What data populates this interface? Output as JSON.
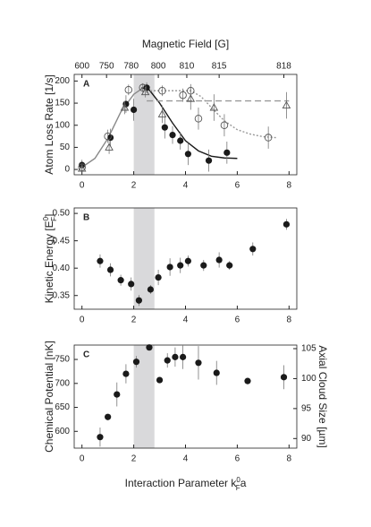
{
  "chart_data": [
    {
      "type": "scatter",
      "panel": "A",
      "top_axis": {
        "label": "Magnetic Field [G]",
        "ticks": [
          600,
          750,
          780,
          800,
          810,
          815,
          818
        ],
        "positions": [
          0,
          0.95,
          1.9,
          2.95,
          4.05,
          5.3,
          7.8
        ]
      },
      "ylabel": "Atom Loss Rate [1/s]",
      "xlim": [
        -0.3,
        8.3
      ],
      "xticks": [
        0,
        2,
        4,
        6,
        8
      ],
      "ylim": [
        -12,
        215
      ],
      "yticks": [
        0,
        50,
        100,
        150,
        200
      ],
      "shade": [
        2,
        2.8
      ],
      "series": [
        {
          "marker": "filled-circle",
          "color": "#1a1a1a",
          "x": [
            0,
            1.1,
            1.7,
            2.0,
            2.5,
            3.2,
            3.5,
            3.8,
            4.1,
            4.9,
            5.6
          ],
          "values": [
            10,
            72,
            148,
            135,
            185,
            95,
            78,
            65,
            35,
            20,
            38
          ],
          "errors": [
            12,
            20,
            20,
            25,
            12,
            25,
            20,
            20,
            25,
            25,
            25
          ]
        },
        {
          "marker": "open-circle",
          "color": "#555555",
          "x": [
            0,
            1.0,
            1.8,
            2.35,
            3.1,
            3.9,
            4.2,
            4.5,
            5.5,
            7.2
          ],
          "values": [
            5,
            75,
            180,
            185,
            178,
            168,
            178,
            115,
            100,
            72
          ],
          "errors": [
            8,
            15,
            12,
            10,
            12,
            15,
            15,
            25,
            25,
            25
          ]
        },
        {
          "marker": "open-triangle",
          "color": "#555555",
          "x": [
            0,
            1.05,
            1.65,
            2.45,
            3.1,
            4.2,
            5.1,
            7.9
          ],
          "values": [
            2,
            50,
            140,
            175,
            125,
            160,
            140,
            145
          ],
          "errors": [
            6,
            15,
            15,
            12,
            20,
            25,
            30,
            30
          ]
        }
      ],
      "curves": [
        {
          "style": "solid",
          "color": "#888888",
          "x": [
            0,
            0.5,
            1,
            1.5,
            2,
            2.3,
            2.5
          ],
          "values": [
            5,
            25,
            70,
            130,
            170,
            182,
            185
          ]
        },
        {
          "style": "solid",
          "color": "#1a1a1a",
          "x": [
            2.3,
            2.6,
            3,
            3.5,
            4,
            4.5,
            5,
            5.5,
            6
          ],
          "values": [
            185,
            180,
            150,
            105,
            65,
            42,
            30,
            26,
            25
          ]
        },
        {
          "style": "dashed",
          "color": "#999999",
          "x": [
            2.5,
            8
          ],
          "values": [
            155,
            155
          ]
        },
        {
          "style": "dotted",
          "color": "#999999",
          "x": [
            2.5,
            4.2,
            4.6,
            5,
            5.5,
            6,
            6.5,
            7,
            7.5
          ],
          "values": [
            178,
            178,
            165,
            140,
            110,
            90,
            80,
            74,
            72
          ]
        }
      ]
    },
    {
      "type": "scatter",
      "panel": "B",
      "ylabel": {
        "text": "Kinetic Energy [E",
        "sup": "0",
        "sub": "F",
        "after": "]"
      },
      "xlim": [
        -0.3,
        8.3
      ],
      "xticks": [
        0,
        2,
        4,
        6,
        8
      ],
      "ylim": [
        0.325,
        0.51
      ],
      "yticks": [
        {
          "value": 0.35,
          "label": "0.35"
        },
        {
          "value": 0.4,
          "label": "0.40"
        },
        0.45,
        {
          "value": 0.5,
          "label": "0.50"
        }
      ],
      "shade": [
        2,
        2.8
      ],
      "series": [
        {
          "marker": "filled-circle",
          "color": "#1a1a1a",
          "x": [
            0.7,
            1.1,
            1.5,
            1.9,
            2.2,
            2.65,
            2.95,
            3.4,
            3.8,
            4.1,
            4.7,
            5.3,
            5.7,
            6.6,
            7.9
          ],
          "values": [
            0.413,
            0.397,
            0.378,
            0.371,
            0.341,
            0.361,
            0.383,
            0.402,
            0.405,
            0.413,
            0.405,
            0.415,
            0.405,
            0.435,
            0.48
          ],
          "errors": [
            0.012,
            0.012,
            0.01,
            0.012,
            0.01,
            0.008,
            0.014,
            0.016,
            0.014,
            0.01,
            0.01,
            0.014,
            0.008,
            0.012,
            0.01
          ]
        }
      ]
    },
    {
      "type": "scatter",
      "panel": "C",
      "ylabel": "Chemical Potential [nK]",
      "y2label": "Axial Cloud Size [µm]",
      "xlabel": {
        "text": "Interaction Parameter k",
        "sup": "0",
        "sub": "F",
        "after": "a"
      },
      "xlim": [
        -0.3,
        8.3
      ],
      "xticks": [
        0,
        2,
        4,
        6,
        8
      ],
      "ylim": [
        565,
        780
      ],
      "yticks": [
        600,
        650,
        700,
        750
      ],
      "y2lim": [
        88.4,
        105.6
      ],
      "y2ticks": [
        90,
        95,
        100,
        105
      ],
      "shade": [
        2,
        2.8
      ],
      "series": [
        {
          "marker": "filled-circle",
          "color": "#1a1a1a",
          "x": [
            0.7,
            1.0,
            1.35,
            1.7,
            2.1,
            2.6,
            3.0,
            3.3,
            3.6,
            3.9,
            4.5,
            5.2,
            6.4,
            7.8
          ],
          "values": [
            588,
            630,
            677,
            720,
            745,
            775,
            707,
            748,
            755,
            755,
            743,
            722,
            705,
            713
          ],
          "errors": [
            20,
            0,
            25,
            20,
            12,
            0,
            0,
            15,
            20,
            25,
            35,
            25,
            0,
            25
          ]
        }
      ]
    }
  ]
}
